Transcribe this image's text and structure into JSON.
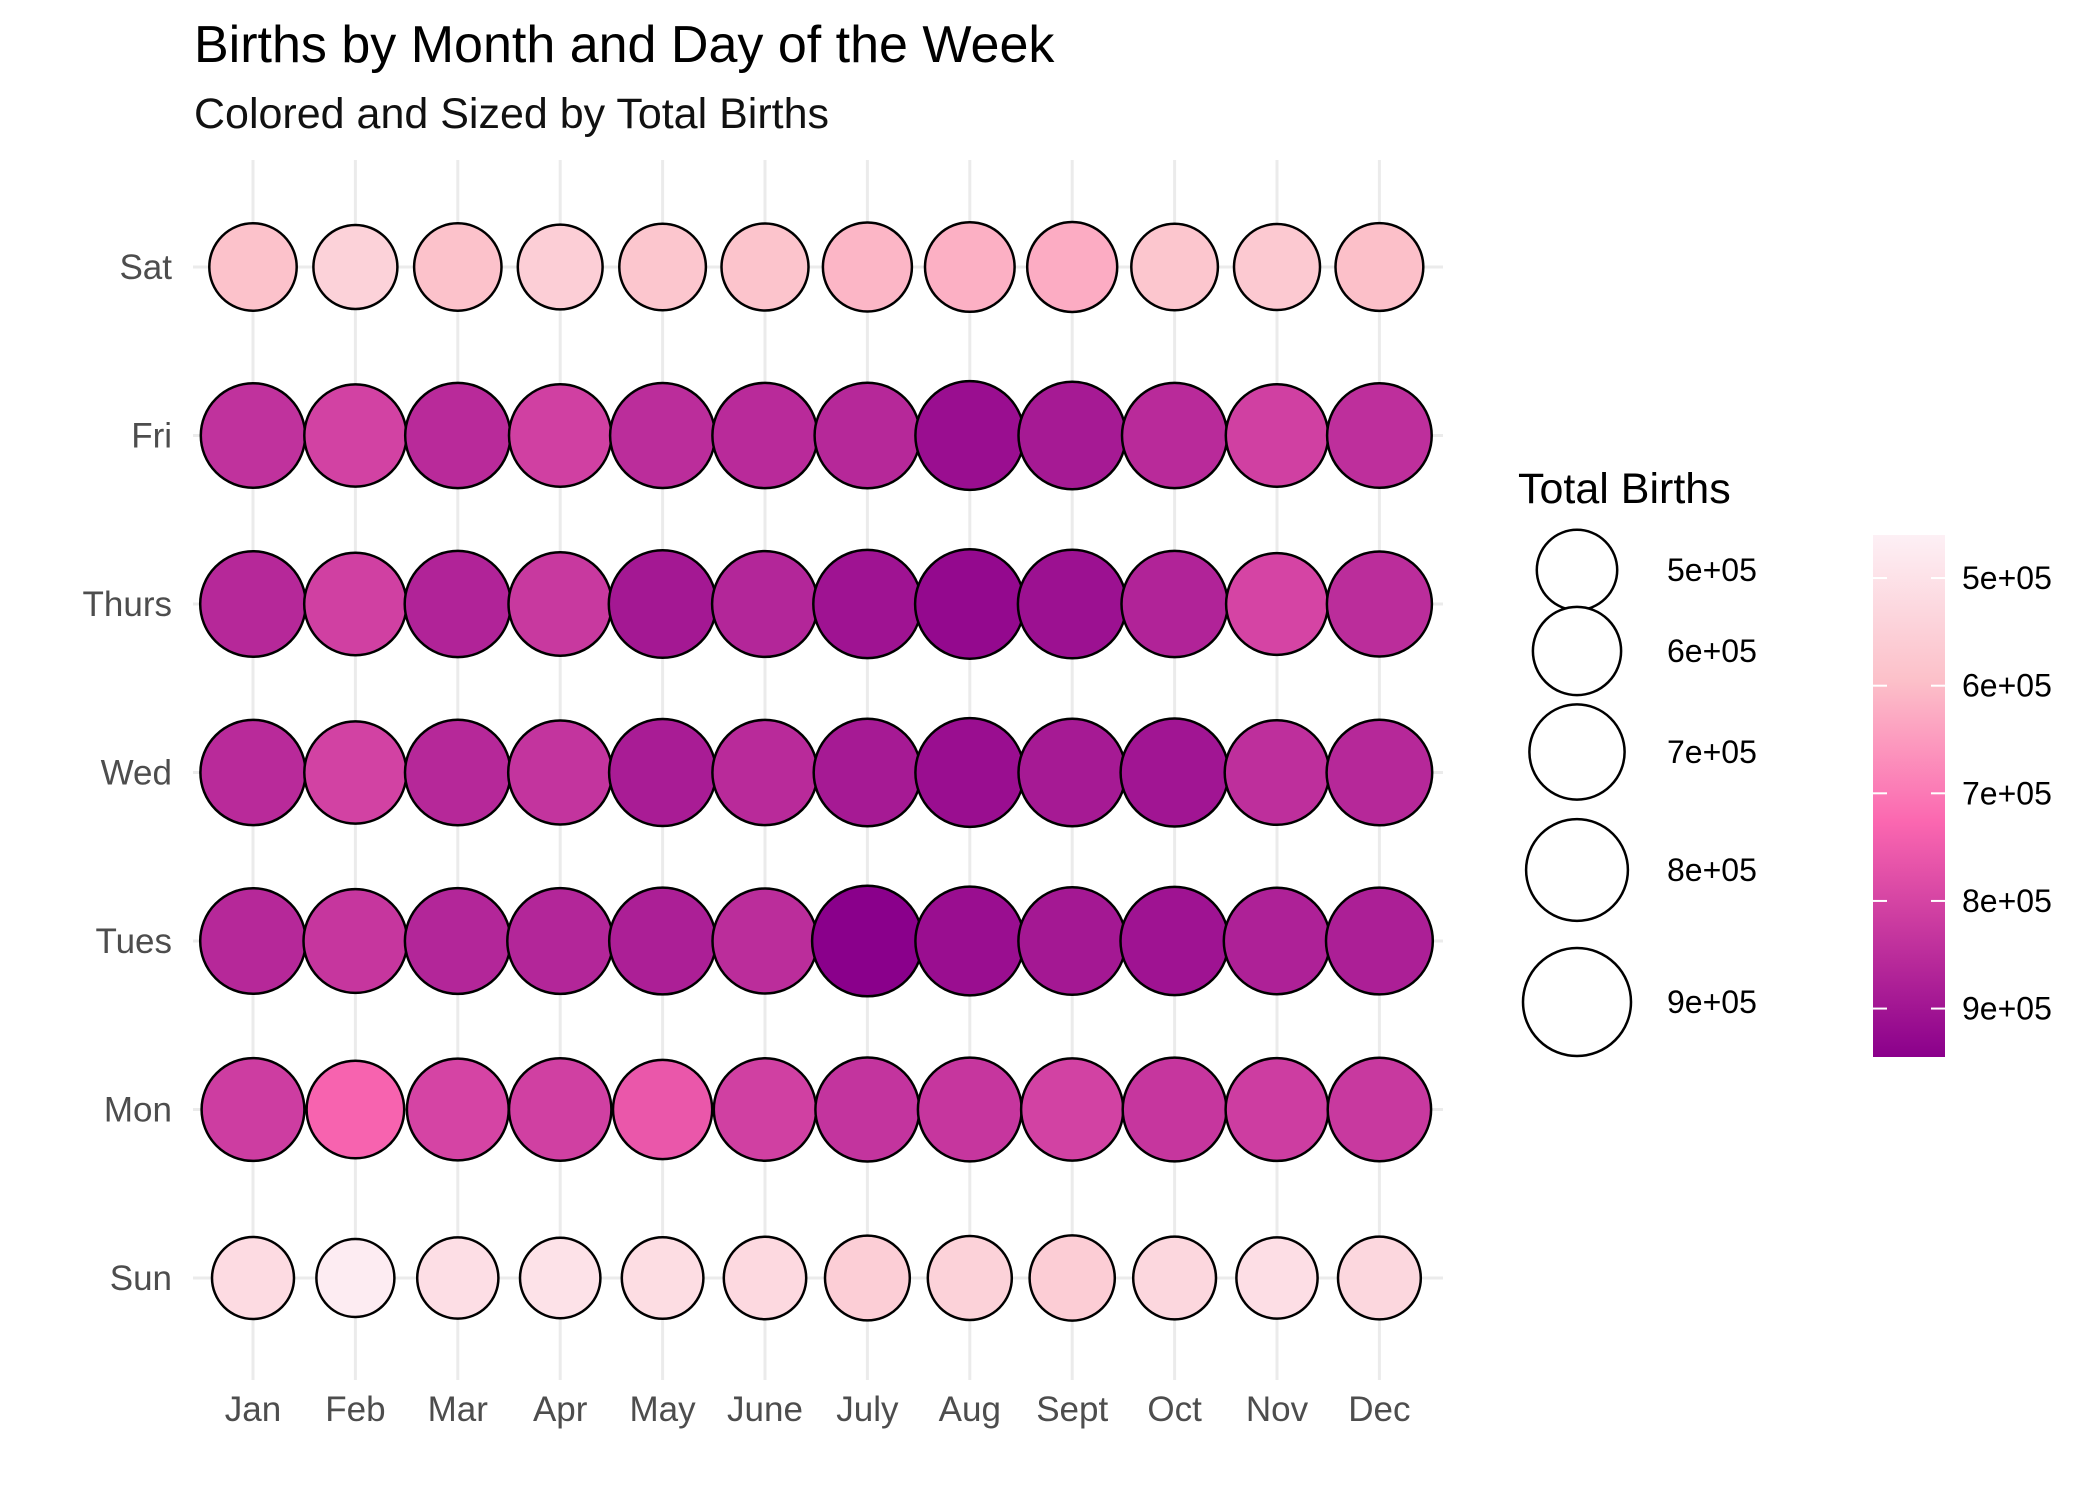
{
  "chart_data": {
    "type": "scatter",
    "title": "Births by Month and Day of the Week",
    "subtitle": "Colored and Sized by Total Births",
    "xlabel": "",
    "ylabel": "",
    "x_categories": [
      "Jan",
      "Feb",
      "Mar",
      "Apr",
      "May",
      "June",
      "July",
      "Aug",
      "Sept",
      "Oct",
      "Nov",
      "Dec"
    ],
    "y_categories": [
      "Sun",
      "Mon",
      "Tues",
      "Wed",
      "Thurs",
      "Fri",
      "Sat"
    ],
    "grid": true,
    "legend_title": "Total Births",
    "legend_position": "right",
    "size_legend_breaks": [
      500000,
      600000,
      700000,
      800000,
      900000
    ],
    "size_legend_labels": [
      "5e+05",
      "6e+05",
      "7e+05",
      "8e+05",
      "9e+05"
    ],
    "color_legend_breaks": [
      500000,
      600000,
      700000,
      800000,
      900000
    ],
    "color_legend_labels": [
      "5e+05",
      "6e+05",
      "7e+05",
      "8e+05",
      "9e+05"
    ],
    "color_range": [
      460000,
      945000
    ],
    "colors": {
      "low": "#fdeef3",
      "mid1": "#fcc0c9",
      "mid2": "#fb67b0",
      "high": "#8a008b"
    },
    "series": [
      {
        "name": "Sun",
        "values": [
          520000,
          470000,
          510000,
          500000,
          515000,
          525000,
          555000,
          545000,
          560000,
          530000,
          510000,
          530000
        ]
      },
      {
        "name": "Mon",
        "values": [
          815000,
          735000,
          800000,
          810000,
          760000,
          810000,
          835000,
          830000,
          805000,
          830000,
          815000,
          825000
        ]
      },
      {
        "name": "Tues",
        "values": [
          860000,
          830000,
          865000,
          865000,
          880000,
          850000,
          945000,
          915000,
          895000,
          905000,
          875000,
          880000
        ]
      },
      {
        "name": "Wed",
        "values": [
          855000,
          805000,
          860000,
          835000,
          885000,
          855000,
          890000,
          915000,
          890000,
          900000,
          845000,
          860000
        ]
      },
      {
        "name": "Thurs",
        "values": [
          860000,
          810000,
          870000,
          825000,
          895000,
          865000,
          905000,
          925000,
          910000,
          870000,
          800000,
          850000
        ]
      },
      {
        "name": "Fri",
        "values": [
          840000,
          805000,
          855000,
          810000,
          850000,
          855000,
          860000,
          915000,
          890000,
          855000,
          810000,
          845000
        ]
      },
      {
        "name": "Sat",
        "values": [
          590000,
          545000,
          590000,
          555000,
          580000,
          585000,
          610000,
          620000,
          625000,
          580000,
          570000,
          595000
        ]
      }
    ]
  }
}
